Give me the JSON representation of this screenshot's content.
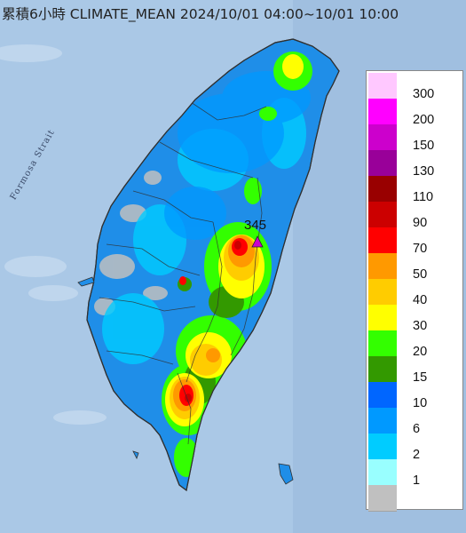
{
  "header": {
    "title": "累積6小時 CLIMATE_MEAN 2024/10/01 04:00~10/01 10:00"
  },
  "map": {
    "strait_label": "Formosa Strait",
    "max_marker": {
      "value_label": "345",
      "icon": "triangle-marker-icon",
      "color": "#cc00cc"
    }
  },
  "legend": {
    "entries": [
      {
        "label": "300",
        "color": "#ffc8ff"
      },
      {
        "label": "200",
        "color": "#ff00ff"
      },
      {
        "label": "150",
        "color": "#cc00cc"
      },
      {
        "label": "130",
        "color": "#990099"
      },
      {
        "label": "110",
        "color": "#990000"
      },
      {
        "label": "90",
        "color": "#cc0000"
      },
      {
        "label": "70",
        "color": "#ff0000"
      },
      {
        "label": "50",
        "color": "#ff9900"
      },
      {
        "label": "40",
        "color": "#ffcc00"
      },
      {
        "label": "30",
        "color": "#ffff00"
      },
      {
        "label": "20",
        "color": "#33ff00"
      },
      {
        "label": "15",
        "color": "#339900"
      },
      {
        "label": "10",
        "color": "#0066ff"
      },
      {
        "label": "6",
        "color": "#0099ff"
      },
      {
        "label": "2",
        "color": "#00ccff"
      },
      {
        "label": "1",
        "color": "#99ffff"
      },
      {
        "label": "",
        "color": "#c0c0c0"
      }
    ]
  }
}
